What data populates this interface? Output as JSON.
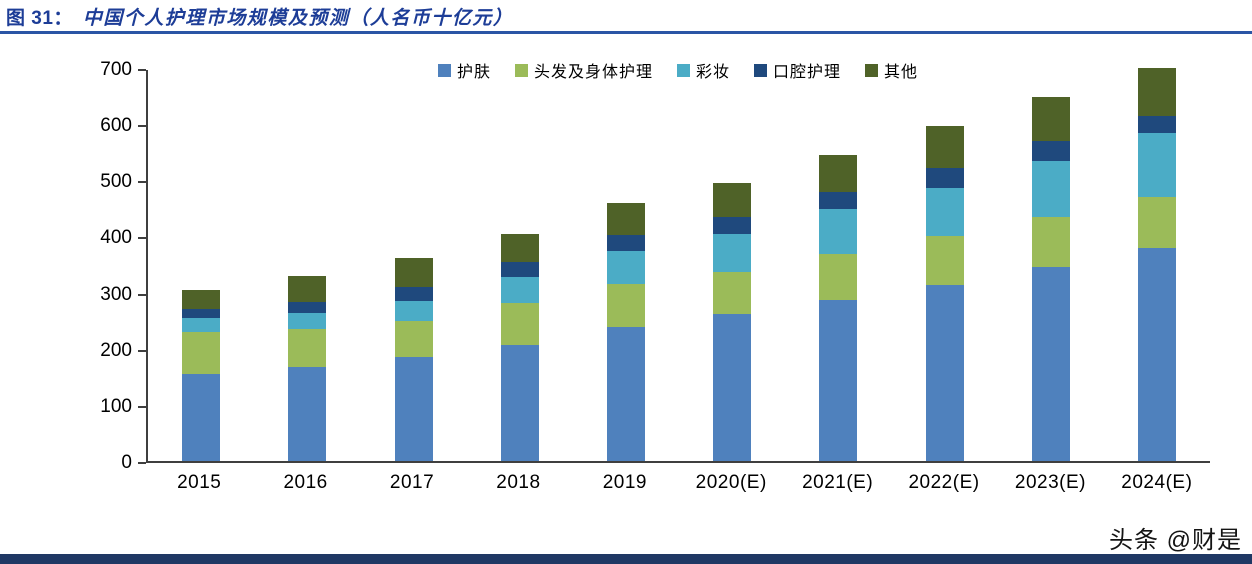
{
  "header": {
    "figure_label": "图 31：",
    "title": "中国个人护理市场规模及预测（人名币十亿元）"
  },
  "chart_data": {
    "type": "bar",
    "stacked": true,
    "title": "中国个人护理市场规模及预测（人名币十亿元）",
    "xlabel": "",
    "ylabel": "",
    "ylim": [
      0,
      700
    ],
    "yticks": [
      0,
      100,
      200,
      300,
      400,
      500,
      600,
      700
    ],
    "grid": false,
    "legend_position": "top-center",
    "categories": [
      "2015",
      "2016",
      "2017",
      "2018",
      "2019",
      "2020(E)",
      "2021(E)",
      "2022(E)",
      "2023(E)",
      "2024(E)"
    ],
    "series": [
      {
        "name": "护肤",
        "color": "#4F81BD",
        "values": [
          155,
          168,
          186,
          207,
          238,
          262,
          287,
          313,
          345,
          380
        ]
      },
      {
        "name": "头发及身体护理",
        "color": "#9BBB59",
        "values": [
          75,
          67,
          64,
          75,
          77,
          75,
          82,
          87,
          90,
          90
        ]
      },
      {
        "name": "彩妆",
        "color": "#4BACC6",
        "values": [
          25,
          28,
          35,
          45,
          60,
          68,
          80,
          87,
          100,
          115
        ]
      },
      {
        "name": "口腔护理",
        "color": "#1F497D",
        "values": [
          15,
          20,
          25,
          28,
          28,
          30,
          30,
          35,
          35,
          30
        ]
      },
      {
        "name": "其他",
        "color": "#4F6228",
        "values": [
          35,
          47,
          52,
          50,
          57,
          60,
          66,
          75,
          78,
          85
        ]
      }
    ]
  },
  "footer": {
    "watermark": "头条 @财是",
    "bar_color": "#1f3864"
  }
}
